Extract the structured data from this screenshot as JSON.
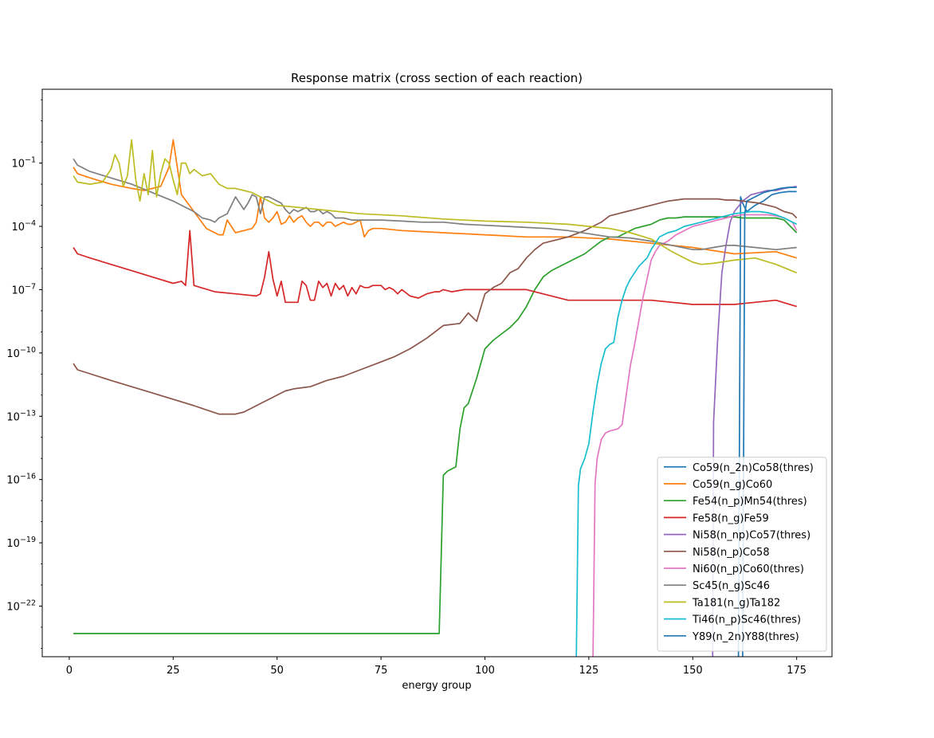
{
  "chart_data": {
    "type": "line",
    "title": "Response matrix (cross section of each reaction)",
    "xlabel": "energy group",
    "ylabel": "",
    "xlim": [
      -6.5,
      183.5
    ],
    "xticks": [
      0,
      25,
      50,
      75,
      100,
      125,
      150,
      175
    ],
    "ylog": true,
    "ylim_exp": [
      -24.4,
      2.5
    ],
    "yticks": [
      {
        "exp": -1,
        "label": "10",
        "sup": "−1"
      },
      {
        "exp": -4,
        "label": "10",
        "sup": "−4"
      },
      {
        "exp": -7,
        "label": "10",
        "sup": "−7"
      },
      {
        "exp": -10,
        "label": "10",
        "sup": "−10"
      },
      {
        "exp": -13,
        "label": "10",
        "sup": "−13"
      },
      {
        "exp": -16,
        "label": "10",
        "sup": "−16"
      },
      {
        "exp": -19,
        "label": "10",
        "sup": "−19"
      },
      {
        "exp": -22,
        "label": "10",
        "sup": "−22"
      }
    ],
    "grid": false,
    "legend_position": "lower-right",
    "series": [
      {
        "name": "Co59(n_2n)Co58(thres)",
        "color": "#1f77b4",
        "x": [
          161,
          161.5,
          162,
          163,
          165,
          167,
          169,
          171,
          173,
          175
        ],
        "y_exp": [
          -24.4,
          -2.6,
          -2.9,
          -3.3,
          -3.0,
          -2.8,
          -2.5,
          -2.4,
          -2.35,
          -2.35
        ]
      },
      {
        "name": "Co59(n_g)Co60",
        "color": "#ff7f0e",
        "x": [
          1,
          2,
          5,
          10,
          15,
          18,
          22,
          24,
          25,
          26,
          27,
          30,
          33,
          35,
          36,
          37,
          38,
          40,
          42,
          44,
          45,
          46,
          47,
          48,
          49,
          50,
          51,
          52,
          53,
          54,
          55,
          56,
          57,
          58,
          59,
          60,
          61,
          62,
          63,
          64,
          65,
          66,
          67,
          68,
          69,
          70,
          71,
          72,
          73,
          75,
          80,
          90,
          100,
          110,
          120,
          130,
          140,
          150,
          160,
          170,
          175
        ],
        "y_exp": [
          -1.2,
          -1.5,
          -1.7,
          -2.0,
          -2.2,
          -2.3,
          -2.1,
          -1.2,
          0.1,
          -1.2,
          -2.5,
          -3.3,
          -4.1,
          -4.3,
          -4.4,
          -4.4,
          -3.7,
          -4.3,
          -4.2,
          -4.1,
          -3.8,
          -2.6,
          -3.6,
          -3.8,
          -3.6,
          -3.3,
          -3.9,
          -3.8,
          -3.5,
          -3.8,
          -3.6,
          -3.5,
          -3.8,
          -4.0,
          -3.8,
          -3.8,
          -4.0,
          -3.8,
          -3.8,
          -4.0,
          -3.9,
          -3.8,
          -3.9,
          -3.9,
          -3.8,
          -3.7,
          -4.5,
          -4.2,
          -4.1,
          -4.1,
          -4.2,
          -4.3,
          -4.4,
          -4.5,
          -4.5,
          -4.6,
          -4.8,
          -5.0,
          -5.3,
          -5.2,
          -5.5
        ]
      },
      {
        "name": "Fe54(n_p)Mn54(thres)",
        "color": "#2ca02c",
        "x": [
          1,
          89,
          90,
          91,
          93,
          94,
          95,
          96,
          98,
          100,
          102,
          104,
          106,
          108,
          110,
          112,
          114,
          116,
          118,
          120,
          122,
          124,
          126,
          128,
          130,
          132,
          134,
          136,
          138,
          140,
          142,
          144,
          146,
          148,
          150,
          152,
          154,
          156,
          158,
          160,
          162,
          164,
          166,
          168,
          170,
          172,
          175
        ],
        "y_exp": [
          -23.3,
          -23.3,
          -15.8,
          -15.6,
          -15.4,
          -13.6,
          -12.6,
          -12.4,
          -11.2,
          -9.8,
          -9.4,
          -9.1,
          -8.8,
          -8.4,
          -7.8,
          -7.0,
          -6.4,
          -6.1,
          -5.9,
          -5.7,
          -5.5,
          -5.3,
          -5.0,
          -4.7,
          -4.5,
          -4.5,
          -4.3,
          -4.1,
          -4.0,
          -3.9,
          -3.7,
          -3.6,
          -3.6,
          -3.55,
          -3.55,
          -3.55,
          -3.55,
          -3.55,
          -3.55,
          -3.55,
          -3.6,
          -3.6,
          -3.6,
          -3.6,
          -3.6,
          -3.7,
          -4.3
        ]
      },
      {
        "name": "Fe58(n_g)Fe59",
        "color": "#d62728",
        "x": [
          1,
          2,
          5,
          10,
          15,
          20,
          25,
          27,
          28,
          29,
          30,
          35,
          40,
          45,
          46,
          47,
          48,
          49,
          50,
          51,
          52,
          53,
          54,
          55,
          56,
          57,
          58,
          59,
          60,
          61,
          62,
          63,
          64,
          65,
          66,
          67,
          68,
          69,
          70,
          71,
          72,
          73,
          74,
          75,
          76,
          77,
          78,
          79,
          80,
          82,
          84,
          86,
          88,
          89,
          90,
          92,
          95,
          100,
          110,
          120,
          130,
          140,
          150,
          155,
          160,
          165,
          170,
          175
        ],
        "y_exp": [
          -5.0,
          -5.3,
          -5.5,
          -5.8,
          -6.1,
          -6.4,
          -6.7,
          -6.6,
          -6.8,
          -4.2,
          -6.8,
          -7.1,
          -7.2,
          -7.3,
          -7.2,
          -6.4,
          -5.2,
          -6.5,
          -7.3,
          -6.6,
          -7.6,
          -7.6,
          -7.6,
          -7.6,
          -6.6,
          -6.8,
          -7.5,
          -7.5,
          -6.6,
          -6.9,
          -6.7,
          -7.3,
          -6.7,
          -7.0,
          -6.8,
          -7.3,
          -6.9,
          -7.2,
          -6.8,
          -6.9,
          -6.9,
          -6.8,
          -6.8,
          -6.8,
          -7.0,
          -6.9,
          -7.0,
          -7.2,
          -7.0,
          -7.3,
          -7.4,
          -7.2,
          -7.1,
          -7.1,
          -7.0,
          -7.1,
          -7.0,
          -7.0,
          -7.0,
          -7.5,
          -7.5,
          -7.5,
          -7.7,
          -7.7,
          -7.7,
          -7.6,
          -7.5,
          -7.8
        ]
      },
      {
        "name": "Ni58(n_np)Co57(thres)",
        "color": "#9467bd",
        "x": [
          154.8,
          155,
          156,
          157,
          158,
          159,
          160,
          162,
          164,
          166,
          168,
          170,
          172,
          175
        ],
        "y_exp": [
          -24.4,
          -13.3,
          -9.3,
          -6.2,
          -4.9,
          -3.8,
          -3.3,
          -2.8,
          -2.5,
          -2.4,
          -2.3,
          -2.3,
          -2.2,
          -2.1
        ]
      },
      {
        "name": "Ni58(n_p)Co58",
        "color": "#8c564b",
        "x": [
          1,
          2,
          10,
          20,
          30,
          36,
          40,
          42,
          44,
          46,
          48,
          50,
          52,
          54,
          58,
          62,
          66,
          70,
          74,
          78,
          82,
          86,
          88,
          90,
          94,
          96,
          98,
          100,
          102,
          104,
          106,
          108,
          110,
          112,
          114,
          116,
          120,
          124,
          126,
          128,
          130,
          132,
          134,
          136,
          138,
          140,
          142,
          144,
          146,
          148,
          150,
          152,
          154,
          156,
          158,
          160,
          162,
          164,
          166,
          168,
          170,
          172,
          174,
          175
        ],
        "y_exp": [
          -10.5,
          -10.8,
          -11.3,
          -11.9,
          -12.5,
          -12.9,
          -12.9,
          -12.8,
          -12.6,
          -12.4,
          -12.2,
          -12.0,
          -11.8,
          -11.7,
          -11.6,
          -11.3,
          -11.1,
          -10.8,
          -10.5,
          -10.2,
          -9.8,
          -9.3,
          -9.0,
          -8.7,
          -8.6,
          -8.1,
          -8.5,
          -7.2,
          -6.9,
          -6.7,
          -6.2,
          -6.0,
          -5.5,
          -5.1,
          -4.8,
          -4.7,
          -4.5,
          -4.2,
          -4.0,
          -3.8,
          -3.5,
          -3.4,
          -3.3,
          -3.2,
          -3.1,
          -3.0,
          -2.9,
          -2.8,
          -2.75,
          -2.7,
          -2.7,
          -2.7,
          -2.7,
          -2.7,
          -2.75,
          -2.75,
          -2.8,
          -2.85,
          -2.9,
          -3.0,
          -3.1,
          -3.3,
          -3.4,
          -3.6
        ]
      },
      {
        "name": "Ni60(n_p)Co60(thres)",
        "color": "#e377c2",
        "x": [
          126,
          126.5,
          127,
          128,
          129,
          130,
          132,
          133,
          134,
          135,
          136,
          137,
          138,
          140,
          141,
          142,
          144,
          146,
          148,
          150,
          152,
          154,
          156,
          158,
          160,
          162,
          164,
          166,
          168,
          170,
          172,
          174,
          175
        ],
        "y_exp": [
          -24.4,
          -16.2,
          -15.0,
          -14.1,
          -13.8,
          -13.7,
          -13.6,
          -13.4,
          -12.0,
          -10.6,
          -9.6,
          -8.5,
          -7.4,
          -5.6,
          -5.2,
          -4.9,
          -4.7,
          -4.4,
          -4.2,
          -4.0,
          -3.9,
          -3.8,
          -3.7,
          -3.6,
          -3.5,
          -3.45,
          -3.45,
          -3.45,
          -3.45,
          -3.5,
          -3.6,
          -3.8,
          -4.2
        ]
      },
      {
        "name": "Sc45(n_g)Sc46",
        "color": "#7f7f7f",
        "x": [
          1,
          2,
          5,
          10,
          15,
          20,
          25,
          28,
          30,
          32,
          34,
          35,
          36,
          38,
          40,
          42,
          43,
          44,
          45,
          46,
          47,
          48,
          49,
          50,
          51,
          52,
          53,
          54,
          55,
          56,
          57,
          58,
          59,
          60,
          61,
          62,
          63,
          64,
          66,
          68,
          70,
          72,
          75,
          80,
          85,
          90,
          95,
          100,
          105,
          110,
          115,
          120,
          125,
          130,
          135,
          140,
          145,
          150,
          152,
          155,
          158,
          160,
          165,
          170,
          175
        ],
        "y_exp": [
          -0.8,
          -1.1,
          -1.4,
          -1.7,
          -2.0,
          -2.4,
          -2.8,
          -3.1,
          -3.3,
          -3.6,
          -3.7,
          -3.8,
          -3.6,
          -3.4,
          -2.6,
          -3.2,
          -2.9,
          -2.5,
          -2.6,
          -3.4,
          -2.6,
          -2.6,
          -2.7,
          -2.8,
          -2.9,
          -3.2,
          -3.4,
          -3.2,
          -3.3,
          -3.2,
          -3.1,
          -3.3,
          -3.3,
          -3.2,
          -3.4,
          -3.3,
          -3.4,
          -3.6,
          -3.6,
          -3.7,
          -3.7,
          -3.7,
          -3.7,
          -3.75,
          -3.8,
          -3.8,
          -3.9,
          -3.95,
          -4.0,
          -4.05,
          -4.1,
          -4.2,
          -4.35,
          -4.5,
          -4.55,
          -4.7,
          -4.9,
          -5.1,
          -5.1,
          -5.0,
          -4.9,
          -4.9,
          -5.0,
          -5.1,
          -5.0
        ]
      },
      {
        "name": "Ta181(n_g)Ta182",
        "color": "#bcbd22",
        "x": [
          1,
          2,
          5,
          8,
          10,
          11,
          12,
          13,
          14,
          15,
          16,
          17,
          18,
          19,
          20,
          21,
          22,
          23,
          24,
          25,
          26,
          27,
          28,
          29,
          30,
          32,
          34,
          36,
          38,
          40,
          42,
          44,
          46,
          48,
          50,
          55,
          60,
          70,
          80,
          90,
          100,
          110,
          120,
          130,
          135,
          140,
          145,
          148,
          150,
          152,
          155,
          160,
          165,
          170,
          175
        ],
        "y_exp": [
          -1.6,
          -1.9,
          -2.0,
          -1.9,
          -1.3,
          -0.6,
          -1.0,
          -2.1,
          -1.6,
          0.1,
          -1.8,
          -2.8,
          -1.5,
          -2.5,
          -0.4,
          -2.6,
          -1.5,
          -0.8,
          -1.0,
          -1.8,
          -2.5,
          -1.0,
          -1.0,
          -1.5,
          -1.3,
          -1.6,
          -1.5,
          -2.0,
          -2.2,
          -2.2,
          -2.3,
          -2.4,
          -2.6,
          -2.8,
          -3.0,
          -3.1,
          -3.2,
          -3.4,
          -3.5,
          -3.65,
          -3.75,
          -3.8,
          -3.9,
          -4.1,
          -4.3,
          -4.6,
          -5.2,
          -5.5,
          -5.7,
          -5.8,
          -5.75,
          -5.6,
          -5.5,
          -5.8,
          -6.2
        ]
      },
      {
        "name": "Ti46(n_p)Sc46(thres)",
        "color": "#17becf",
        "x": [
          122,
          122.5,
          123,
          124,
          125,
          126,
          127,
          128,
          129,
          130,
          131,
          132,
          133,
          134,
          135,
          136,
          137,
          138,
          139,
          140,
          141,
          142,
          143,
          144,
          146,
          148,
          150,
          152,
          154,
          156,
          158,
          160,
          162,
          164,
          166,
          168,
          170,
          172,
          175
        ],
        "y_exp": [
          -24.4,
          -16.3,
          -15.5,
          -15.0,
          -14.3,
          -12.8,
          -11.5,
          -10.5,
          -9.8,
          -9.6,
          -9.5,
          -8.3,
          -7.5,
          -6.9,
          -6.5,
          -6.2,
          -5.9,
          -5.7,
          -5.5,
          -5.1,
          -4.8,
          -4.5,
          -4.4,
          -4.3,
          -4.2,
          -4.0,
          -3.9,
          -3.8,
          -3.7,
          -3.6,
          -3.5,
          -3.4,
          -3.35,
          -3.3,
          -3.3,
          -3.35,
          -3.45,
          -3.6,
          -3.9
        ]
      },
      {
        "name": "Y89(n_2n)Y88(thres)",
        "color": "#1f77b4",
        "x": [
          162,
          162.5,
          163,
          165,
          167,
          169,
          171,
          173,
          175
        ],
        "y_exp": [
          -24.4,
          -3.4,
          -2.8,
          -2.6,
          -2.4,
          -2.3,
          -2.2,
          -2.15,
          -2.15
        ]
      }
    ]
  }
}
